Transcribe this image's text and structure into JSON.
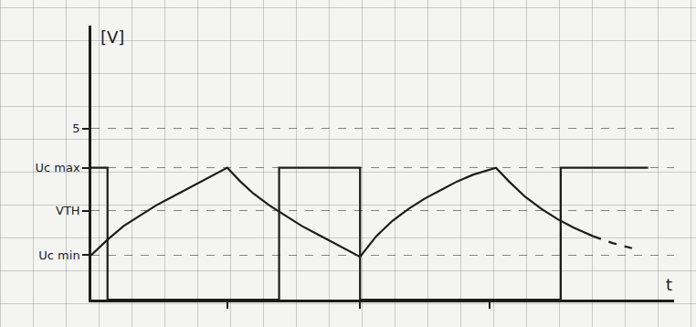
{
  "chart_data": {
    "type": "line",
    "x_label": "t",
    "y_label": "[V]",
    "xlim": [
      0,
      18
    ],
    "ylim": [
      0,
      8
    ],
    "xticks": [
      4.2,
      8.3,
      12.3
    ],
    "yticks": [
      {
        "value": 1.3,
        "label": "Uc min"
      },
      {
        "value": 2.6,
        "label": "VTH"
      },
      {
        "value": 3.85,
        "label": "Uc max"
      },
      5
    ],
    "tick_labels": "y",
    "grid": true,
    "series": [
      {
        "color": "#1c1c1c",
        "line_style": "solid",
        "x": [
          0,
          0.5,
          0.5,
          5.8,
          5.8,
          8.3,
          8.3,
          14.5,
          14.5,
          17.2
        ],
        "values": [
          3.85,
          3.85,
          0,
          0,
          3.85,
          3.85,
          0,
          0,
          3.85,
          3.85
        ]
      },
      {
        "color": "#1c1c1c",
        "line_style": "solid",
        "x": [
          0,
          0.5,
          1,
          1.5,
          2,
          2.5,
          3,
          3.5,
          4.2,
          4.6,
          5,
          5.5,
          6,
          6.5,
          7,
          7.5,
          8.3,
          8.8,
          9.3,
          9.8,
          10.3,
          10.8,
          11.3,
          11.8,
          12.5,
          12.9,
          13.4,
          13.9,
          14.4,
          14.9,
          15.5
        ],
        "values": [
          1.3,
          1.75,
          2.15,
          2.45,
          2.75,
          3.0,
          3.25,
          3.5,
          3.85,
          3.45,
          3.1,
          2.75,
          2.45,
          2.15,
          1.9,
          1.65,
          1.25,
          1.85,
          2.3,
          2.65,
          2.95,
          3.2,
          3.45,
          3.65,
          3.85,
          3.45,
          3.0,
          2.65,
          2.35,
          2.1,
          1.85
        ]
      },
      {
        "color": "#1c1c1c",
        "line_style": "dashed",
        "x": [
          15.5,
          16.1,
          16.7
        ],
        "values": [
          1.85,
          1.65,
          1.5
        ]
      }
    ]
  }
}
